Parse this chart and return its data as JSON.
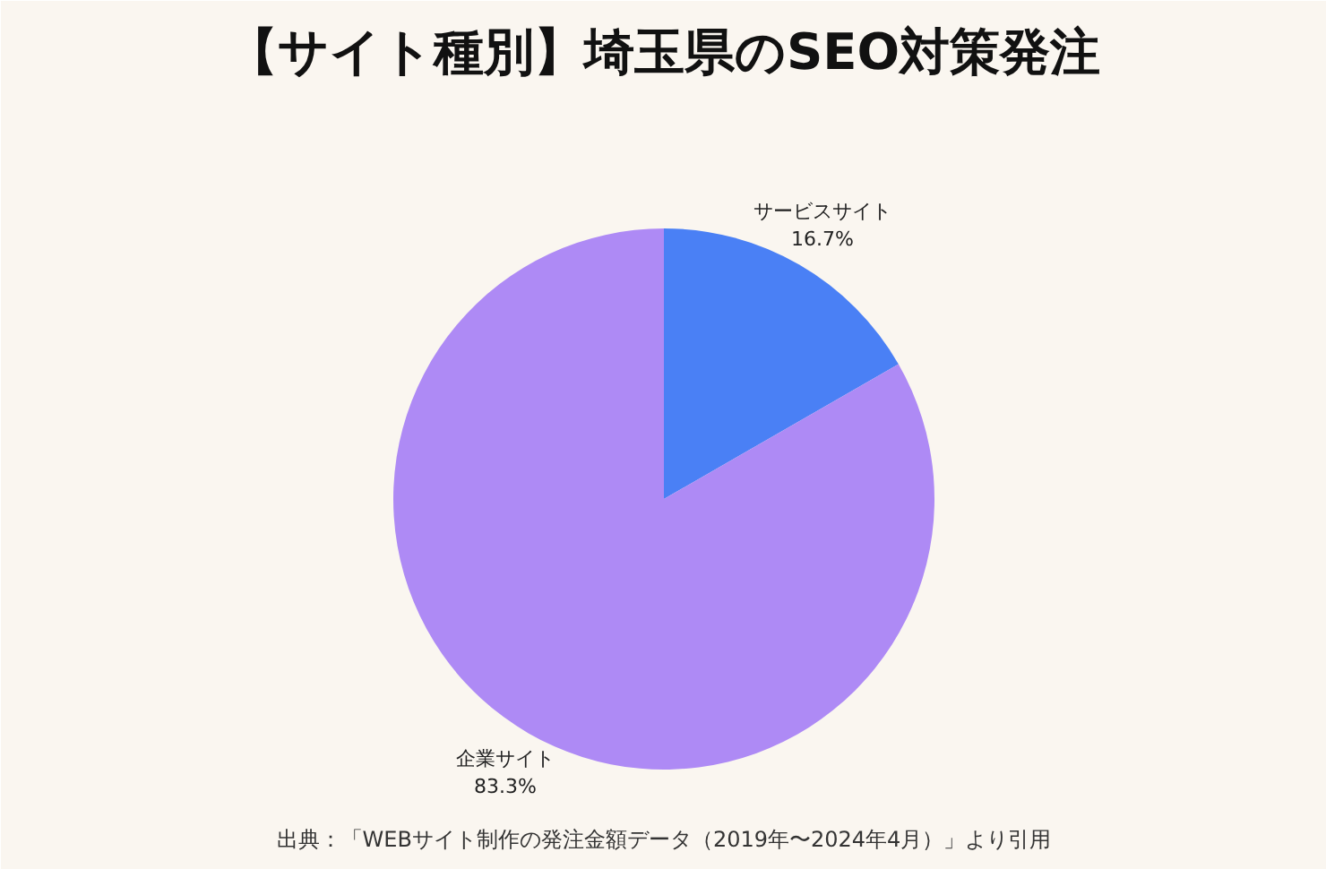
{
  "chart_data": {
    "type": "pie",
    "title": "【サイト種別】埼玉県のSEO対策発注",
    "categories": [
      "サービスサイト",
      "企業サイト"
    ],
    "values": [
      16.7,
      83.3
    ],
    "colors": [
      "#4a80f5",
      "#ae8af5"
    ],
    "value_labels": [
      "16.7%",
      "83.3%"
    ],
    "annotations": [
      "出典：「WEBサイト制作の発注金額データ（2019年〜2024年4月）」より引用"
    ]
  }
}
